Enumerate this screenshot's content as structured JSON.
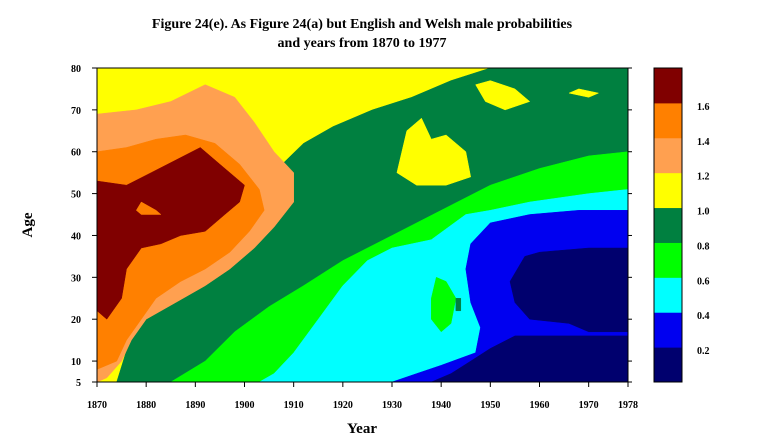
{
  "chart_data": {
    "type": "heatmap",
    "title_lines": [
      "Figure 24(e). As Figure 24(a) but English and Welsh male probabilities",
      "and years from 1870 to 1977"
    ],
    "xlabel": "Year",
    "ylabel": "Age",
    "xlim": [
      1870,
      1978
    ],
    "ylim": [
      5,
      80
    ],
    "x_ticks": [
      1870,
      1880,
      1890,
      1900,
      1910,
      1920,
      1930,
      1940,
      1950,
      1960,
      1970,
      1978
    ],
    "y_ticks": [
      5,
      10,
      20,
      30,
      40,
      50,
      60,
      70,
      80
    ],
    "colorbar": {
      "levels": [
        0.2,
        0.4,
        0.6,
        0.8,
        1.0,
        1.2,
        1.4,
        1.6
      ],
      "labels": [
        "0.2",
        "0.4",
        "0.6",
        "0.8",
        "1.0",
        "1.2",
        "1.4",
        "1.6"
      ],
      "colors": [
        "#00006e",
        "#0000f0",
        "#00ffff",
        "#00ff00",
        "#008040",
        "#ffff00",
        "#ffa050",
        "#ff8000",
        "#800000"
      ]
    },
    "regions": [
      {
        "level": 1.0,
        "color": "#ffff00",
        "polygon": [
          [
            1870,
            5
          ],
          [
            1978,
            5
          ],
          [
            1978,
            80
          ],
          [
            1870,
            80
          ]
        ]
      },
      {
        "level": 0.8,
        "color": "#008040",
        "polygon": [
          [
            1888,
            5
          ],
          [
            1978,
            5
          ],
          [
            1978,
            80
          ],
          [
            1950,
            80
          ],
          [
            1942,
            77
          ],
          [
            1934,
            73
          ],
          [
            1926,
            70
          ],
          [
            1918,
            66
          ],
          [
            1912,
            62
          ],
          [
            1905,
            54
          ],
          [
            1898,
            46
          ],
          [
            1891,
            38
          ],
          [
            1884,
            30
          ],
          [
            1878,
            20
          ],
          [
            1874,
            5
          ]
        ]
      },
      {
        "level": 1.0,
        "color": "#ffff00",
        "polygon": [
          [
            1931,
            55
          ],
          [
            1933,
            65
          ],
          [
            1936,
            68
          ],
          [
            1938,
            63
          ],
          [
            1941,
            64
          ],
          [
            1945,
            60
          ],
          [
            1946,
            54
          ],
          [
            1941,
            52
          ],
          [
            1935,
            52
          ]
        ]
      },
      {
        "level": 1.0,
        "color": "#ffff00",
        "polygon": [
          [
            1947,
            76
          ],
          [
            1950,
            77
          ],
          [
            1955,
            75
          ],
          [
            1958,
            72
          ],
          [
            1953,
            70
          ],
          [
            1949,
            72
          ]
        ]
      },
      {
        "level": 1.0,
        "color": "#ffff00",
        "polygon": [
          [
            1966,
            74
          ],
          [
            1968,
            75
          ],
          [
            1972,
            74
          ],
          [
            1970,
            73
          ]
        ]
      },
      {
        "level": 0.6,
        "color": "#00ff00",
        "polygon": [
          [
            1885,
            5
          ],
          [
            1978,
            5
          ],
          [
            1978,
            60
          ],
          [
            1970,
            59
          ],
          [
            1960,
            56
          ],
          [
            1950,
            52
          ],
          [
            1940,
            46
          ],
          [
            1930,
            40
          ],
          [
            1920,
            34
          ],
          [
            1912,
            28
          ],
          [
            1905,
            23
          ],
          [
            1898,
            17
          ],
          [
            1892,
            10
          ]
        ]
      },
      {
        "level": 0.4,
        "color": "#00ffff",
        "polygon": [
          [
            1903,
            5
          ],
          [
            1978,
            5
          ],
          [
            1978,
            51
          ],
          [
            1970,
            50
          ],
          [
            1958,
            48
          ],
          [
            1950,
            46
          ],
          [
            1945,
            45
          ],
          [
            1938,
            39
          ],
          [
            1930,
            37
          ],
          [
            1925,
            34
          ],
          [
            1920,
            28
          ],
          [
            1915,
            20
          ],
          [
            1910,
            12
          ],
          [
            1906,
            7
          ]
        ]
      },
      {
        "level": 0.6,
        "color": "#00ff00",
        "polygon": [
          [
            1938,
            25
          ],
          [
            1939,
            30
          ],
          [
            1941,
            29
          ],
          [
            1943,
            25
          ],
          [
            1942,
            19
          ],
          [
            1940,
            17
          ],
          [
            1938,
            20
          ]
        ]
      },
      {
        "level": 0.2,
        "color": "#0000f0",
        "polygon": [
          [
            1930,
            5
          ],
          [
            1978,
            5
          ],
          [
            1978,
            46
          ],
          [
            1968,
            46
          ],
          [
            1958,
            45
          ],
          [
            1950,
            43
          ],
          [
            1946,
            38
          ],
          [
            1945,
            32
          ],
          [
            1946,
            24
          ],
          [
            1948,
            18
          ],
          [
            1947,
            12
          ],
          [
            1940,
            9
          ],
          [
            1935,
            7
          ]
        ]
      },
      {
        "level": 0.0,
        "color": "#00006e",
        "polygon": [
          [
            1938,
            5
          ],
          [
            1978,
            5
          ],
          [
            1978,
            37
          ],
          [
            1970,
            37
          ],
          [
            1960,
            36
          ],
          [
            1957,
            35
          ],
          [
            1954,
            29
          ],
          [
            1955,
            24
          ],
          [
            1958,
            20
          ],
          [
            1966,
            19
          ],
          [
            1970,
            17
          ],
          [
            1978,
            17
          ],
          [
            1978,
            16
          ],
          [
            1955,
            16
          ],
          [
            1950,
            13
          ],
          [
            1946,
            10
          ],
          [
            1942,
            7
          ]
        ]
      },
      {
        "level": 1.2,
        "color": "#ffa050",
        "polygon": [
          [
            1870,
            69
          ],
          [
            1878,
            70
          ],
          [
            1885,
            72
          ],
          [
            1892,
            76
          ],
          [
            1898,
            73
          ],
          [
            1902,
            67
          ],
          [
            1906,
            60
          ],
          [
            1910,
            55
          ],
          [
            1910,
            48
          ],
          [
            1906,
            42
          ],
          [
            1902,
            37
          ],
          [
            1897,
            32
          ],
          [
            1892,
            28
          ],
          [
            1886,
            24
          ],
          [
            1880,
            20
          ],
          [
            1877,
            15
          ],
          [
            1875,
            10
          ],
          [
            1872,
            6
          ],
          [
            1870,
            5
          ]
        ]
      },
      {
        "level": 1.4,
        "color": "#ff8000",
        "polygon": [
          [
            1870,
            60
          ],
          [
            1876,
            61
          ],
          [
            1882,
            63
          ],
          [
            1888,
            64
          ],
          [
            1894,
            62
          ],
          [
            1899,
            57
          ],
          [
            1903,
            51
          ],
          [
            1904,
            46
          ],
          [
            1901,
            41
          ],
          [
            1897,
            36
          ],
          [
            1892,
            32
          ],
          [
            1887,
            29
          ],
          [
            1882,
            25
          ],
          [
            1879,
            20
          ],
          [
            1876,
            15
          ],
          [
            1874,
            10
          ],
          [
            1870,
            8
          ]
        ]
      },
      {
        "level": 1.6,
        "color": "#800000",
        "polygon": [
          [
            1870,
            53
          ],
          [
            1876,
            52
          ],
          [
            1881,
            55
          ],
          [
            1886,
            58
          ],
          [
            1891,
            61
          ],
          [
            1895,
            57
          ],
          [
            1900,
            52
          ],
          [
            1899,
            48
          ],
          [
            1896,
            45
          ],
          [
            1892,
            41
          ],
          [
            1887,
            40
          ],
          [
            1883,
            38
          ],
          [
            1879,
            37
          ],
          [
            1876,
            32
          ],
          [
            1875,
            25
          ],
          [
            1872,
            20
          ],
          [
            1870,
            22
          ]
        ]
      },
      {
        "level": 1.4,
        "color": "#ff8000",
        "polygon": [
          [
            1879,
            48
          ],
          [
            1882,
            46
          ],
          [
            1883,
            45
          ],
          [
            1879,
            45
          ],
          [
            1878,
            46
          ]
        ]
      },
      {
        "level": 0.8,
        "color": "#008040",
        "polygon": [
          [
            1943,
            25
          ],
          [
            1943,
            22
          ],
          [
            1944,
            22
          ],
          [
            1944,
            25
          ]
        ]
      }
    ]
  }
}
